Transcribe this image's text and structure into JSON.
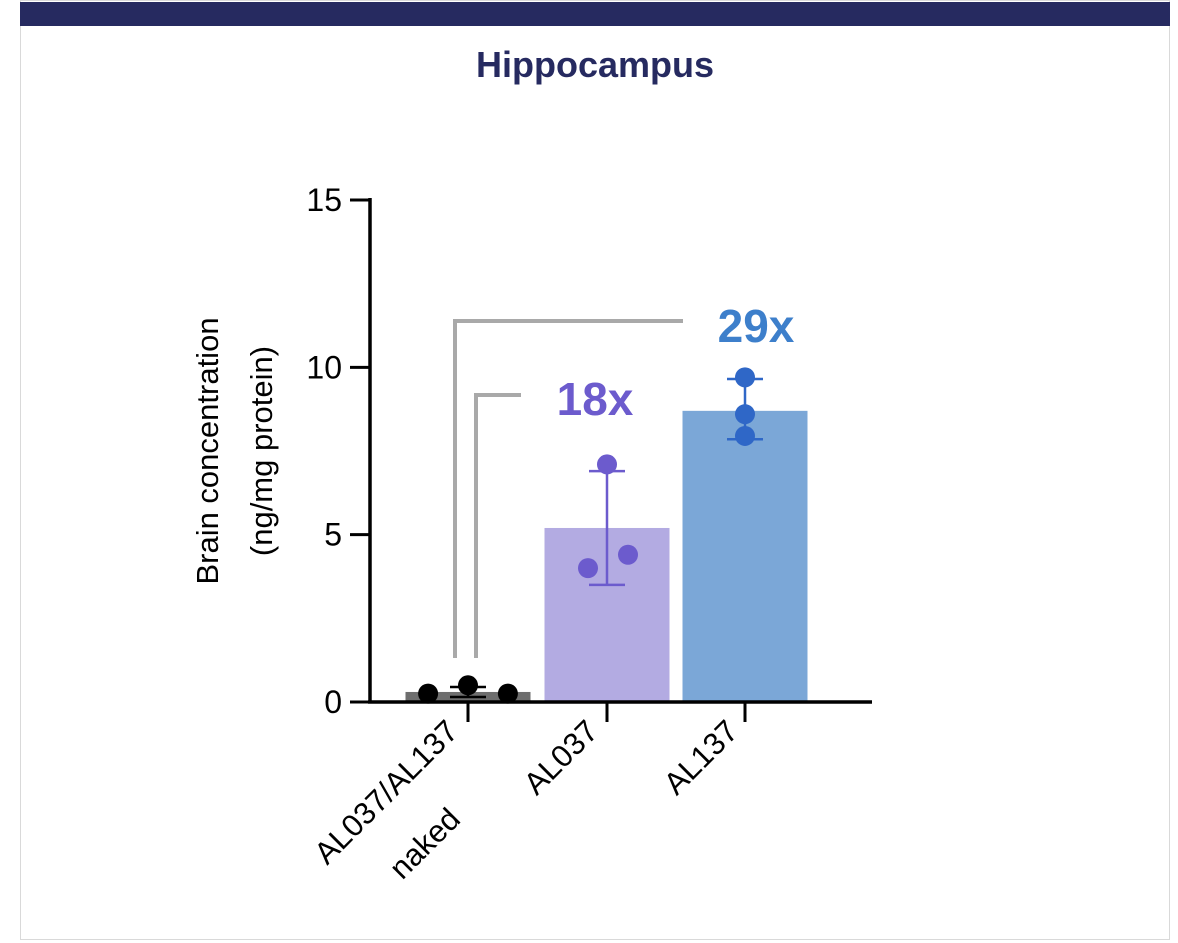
{
  "colors": {
    "header_bar": "#262a60",
    "title": "#262a60",
    "naked_bar": "#6e6e6e",
    "naked_point": "#000000",
    "al037_bar": "#b3abe2",
    "al037_point": "#6c5bcd",
    "al137_bar": "#7ba7d7",
    "al137_point": "#2f67c7",
    "bracket": "#a9a9a9"
  },
  "header": {
    "title": "Hippocampus"
  },
  "chart_data": {
    "type": "bar",
    "title": "Hippocampus",
    "ylabel_line1": "Brain concentration",
    "ylabel_line2": "(ng/mg protein)",
    "ylim": [
      0,
      15
    ],
    "yticks": [
      "0",
      "5",
      "10",
      "15"
    ],
    "categories": [
      {
        "line1": "AL037/AL137",
        "line2": "naked"
      },
      {
        "line1": "AL037",
        "line2": ""
      },
      {
        "line1": "AL137",
        "line2": ""
      }
    ],
    "series": [
      {
        "values": [
          0.3,
          5.2,
          8.7
        ]
      }
    ],
    "error_bars": [
      {
        "low": 0.15,
        "high": 0.45
      },
      {
        "low": 3.5,
        "high": 6.9
      },
      {
        "low": 7.85,
        "high": 9.65
      }
    ],
    "points": [
      [
        0.25,
        0.5,
        0.25
      ],
      [
        4.0,
        7.1,
        4.4
      ],
      [
        9.7,
        8.6,
        7.95
      ]
    ],
    "annotations": [
      {
        "text": "18x",
        "target": "AL037"
      },
      {
        "text": "29x",
        "target": "AL137"
      }
    ],
    "grid": false
  }
}
